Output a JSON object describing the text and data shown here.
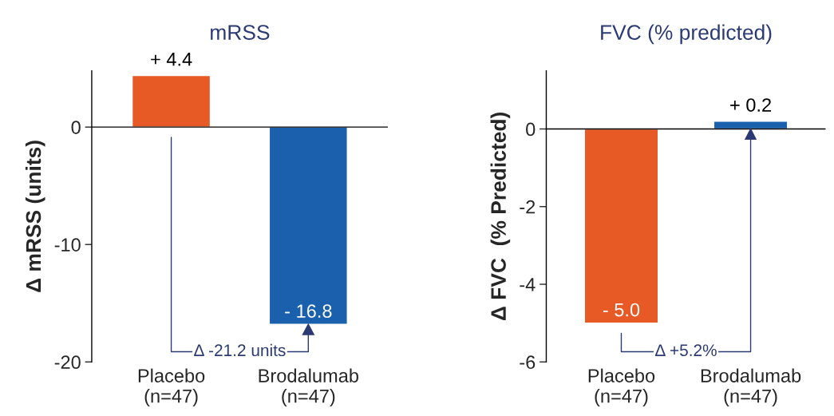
{
  "chart_data": [
    {
      "type": "bar",
      "title": "mRSS",
      "ylabel": "Δ mRSS (units)",
      "categories": [
        "Placebo\n(n=47)",
        "Brodalumab\n(n=47)"
      ],
      "values": [
        4.4,
        -16.8
      ],
      "colors": [
        "#e85a25",
        "#1a60ad"
      ],
      "value_labels": [
        "+ 4.4",
        "- 16.8"
      ],
      "ylim": [
        -20,
        4.8
      ],
      "yticks": [
        -20,
        -10,
        0
      ],
      "ref_lines": [
        {
          "axis": "y",
          "value": 0
        }
      ],
      "annotations": [
        "Δ -21.2 units"
      ],
      "grid": false,
      "legend": false
    },
    {
      "type": "bar",
      "title": "FVC (% predicted)",
      "ylabel": "Δ FVC  (% Predicted)",
      "categories": [
        "Placebo\n(n=47)",
        "Brodalumab\n(n=47)"
      ],
      "values": [
        -5.0,
        0.2
      ],
      "colors": [
        "#e85a25",
        "#1a60ad"
      ],
      "value_labels": [
        "- 5.0",
        "+ 0.2"
      ],
      "ylim": [
        -6,
        1.5
      ],
      "yticks": [
        -6,
        -4,
        -2,
        0
      ],
      "ref_lines": [
        {
          "axis": "y",
          "value": 0
        }
      ],
      "annotations": [
        "Δ +5.2%"
      ],
      "grid": false,
      "legend": false
    }
  ]
}
